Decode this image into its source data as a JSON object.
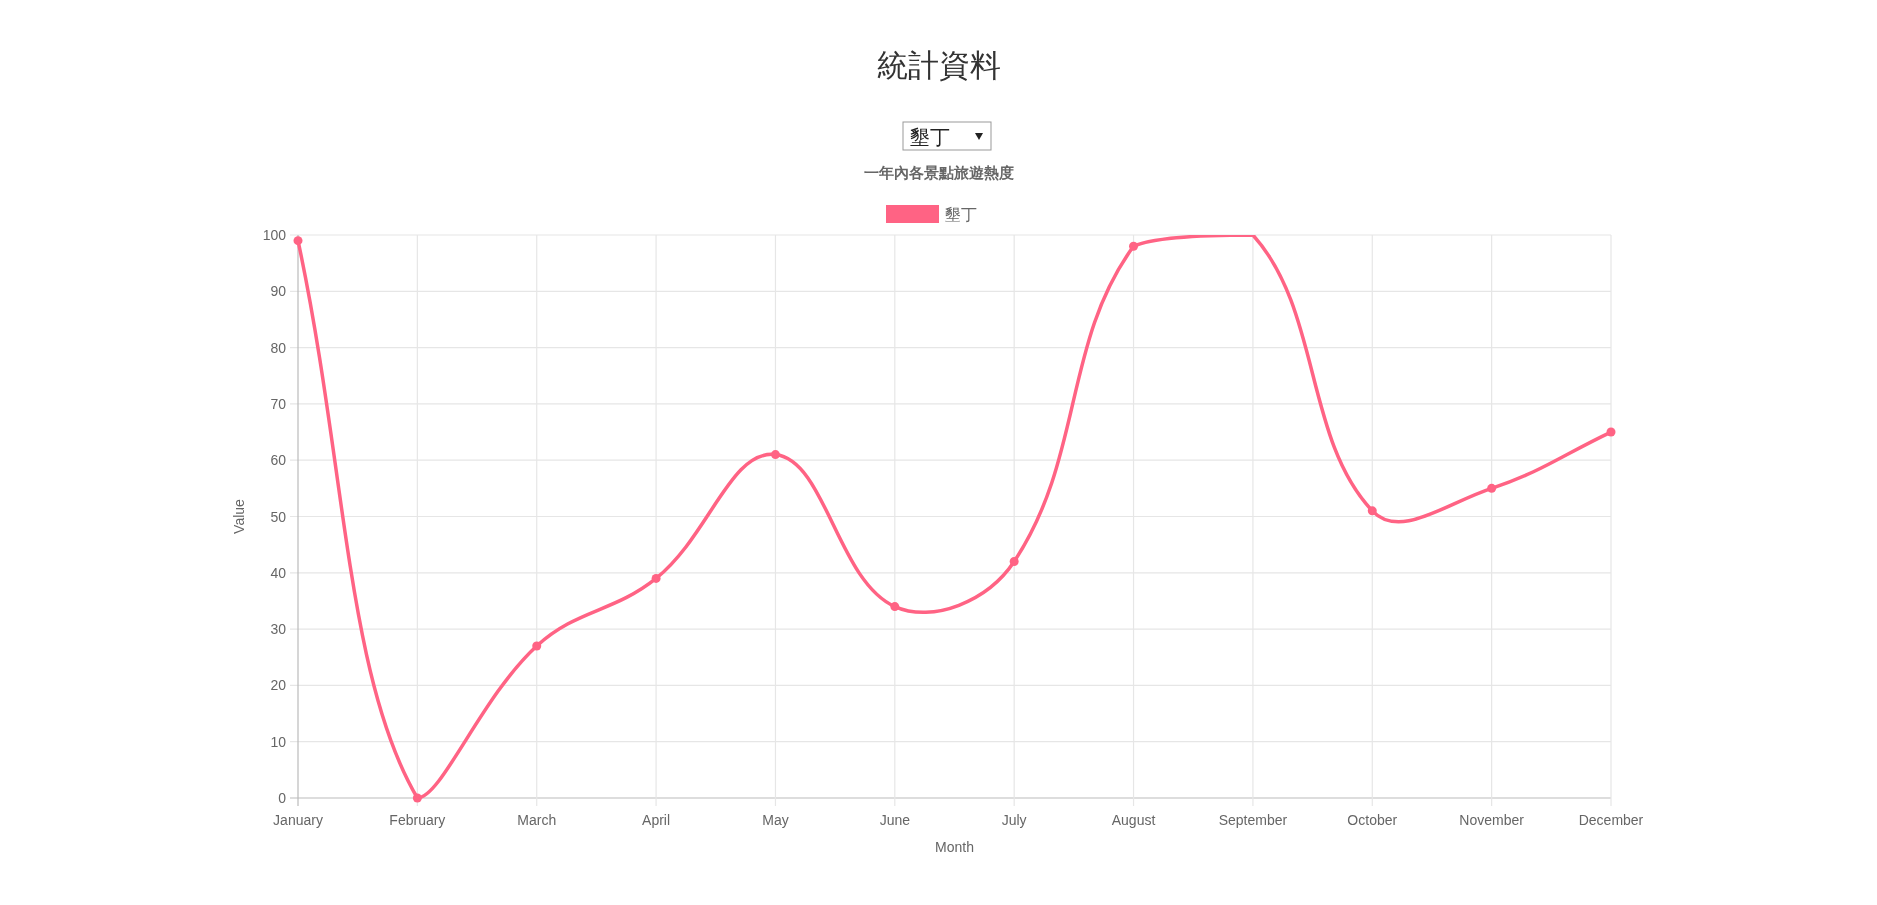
{
  "chart_data": {
    "type": "line",
    "title": "統計資料",
    "subtitle": "一年內各景點旅遊熱度",
    "xlabel": "Month",
    "ylabel": "Value",
    "annotations": [
      "墾丁"
    ],
    "categories": [
      "January",
      "February",
      "March",
      "April",
      "May",
      "June",
      "July",
      "August",
      "September",
      "October",
      "November",
      "December"
    ],
    "series": [
      {
        "name": "墾丁",
        "color": "#ff6384",
        "values": [
          99,
          0,
          27,
          39,
          61,
          34,
          42,
          98,
          100,
          51,
          55,
          65
        ]
      }
    ],
    "ylim": [
      0,
      100
    ],
    "yticks": [
      0,
      10,
      20,
      30,
      40,
      50,
      60,
      70,
      80,
      90,
      100
    ],
    "grid": true,
    "legend": "top",
    "marker": "circle",
    "line_style": "solid"
  }
}
